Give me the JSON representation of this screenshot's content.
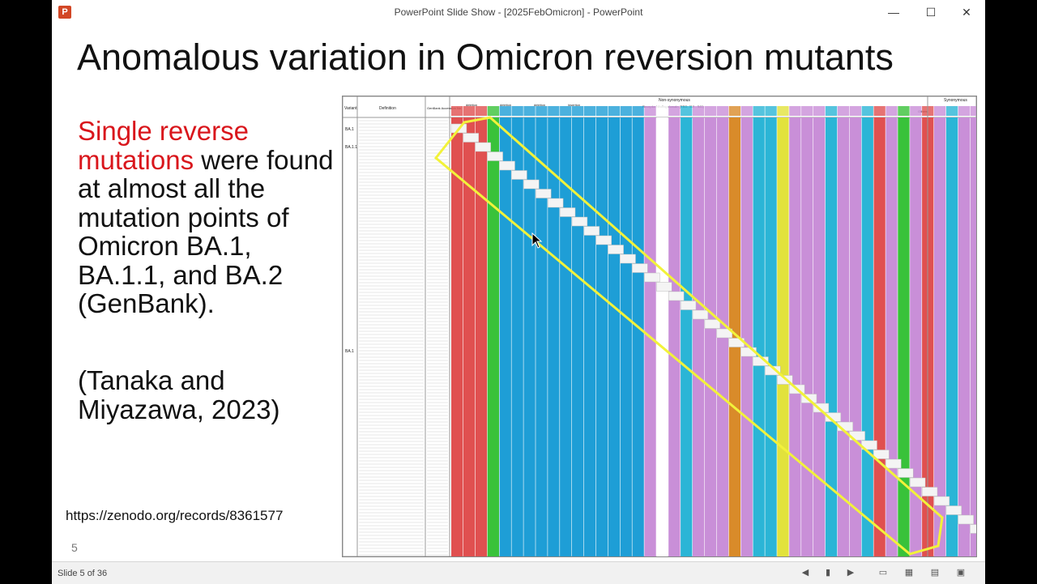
{
  "window": {
    "title": "PowerPoint Slide Show - [2025FebOmicron] - PowerPoint",
    "app_icon_label": "P"
  },
  "controls": {
    "minimize": "—",
    "maximize": "☐",
    "close": "✕"
  },
  "slide": {
    "title": "Anomalous variation in Omicron reversion mutants",
    "body_red": "Single reverse mutations",
    "body_black": " were found at almost all the mutation points of Omicron BA.1, BA.1.1, and BA.2 (GenBank).",
    "citation": "(Tanaka and Miyazawa, 2023)",
    "url": "https://zenodo.org/records/8361577",
    "number": "5"
  },
  "table": {
    "header_nonsyn": "Non-synonymous",
    "header_syn": "Synonymous",
    "col_variant": "Variant",
    "col_definition": "Definition",
    "col_accession": "GenBank Accession No.",
    "variant_labels": [
      "BA.1",
      "BA.1.1",
      "BA.1"
    ],
    "group_labels": [
      "deletion",
      "deletion",
      "deletion",
      "insertion"
    ],
    "rbd_label": "Receptor binding domain (RBD: 319 - 541)",
    "others_label": "Others",
    "colors": [
      "#e05050",
      "#2bb5d6",
      "#39c23a",
      "#1e9ed6",
      "#e2c93c",
      "#c98fd8",
      "#36b36b",
      "#8a8a2a",
      "#b8e86a",
      "#ff5fb0",
      "#9a9a9a"
    ]
  },
  "statusbar": {
    "slide_counter": "Slide 5 of 36"
  },
  "accent": {
    "title_red": "#d9161c",
    "highlight_yellow": "#f2f23a"
  }
}
